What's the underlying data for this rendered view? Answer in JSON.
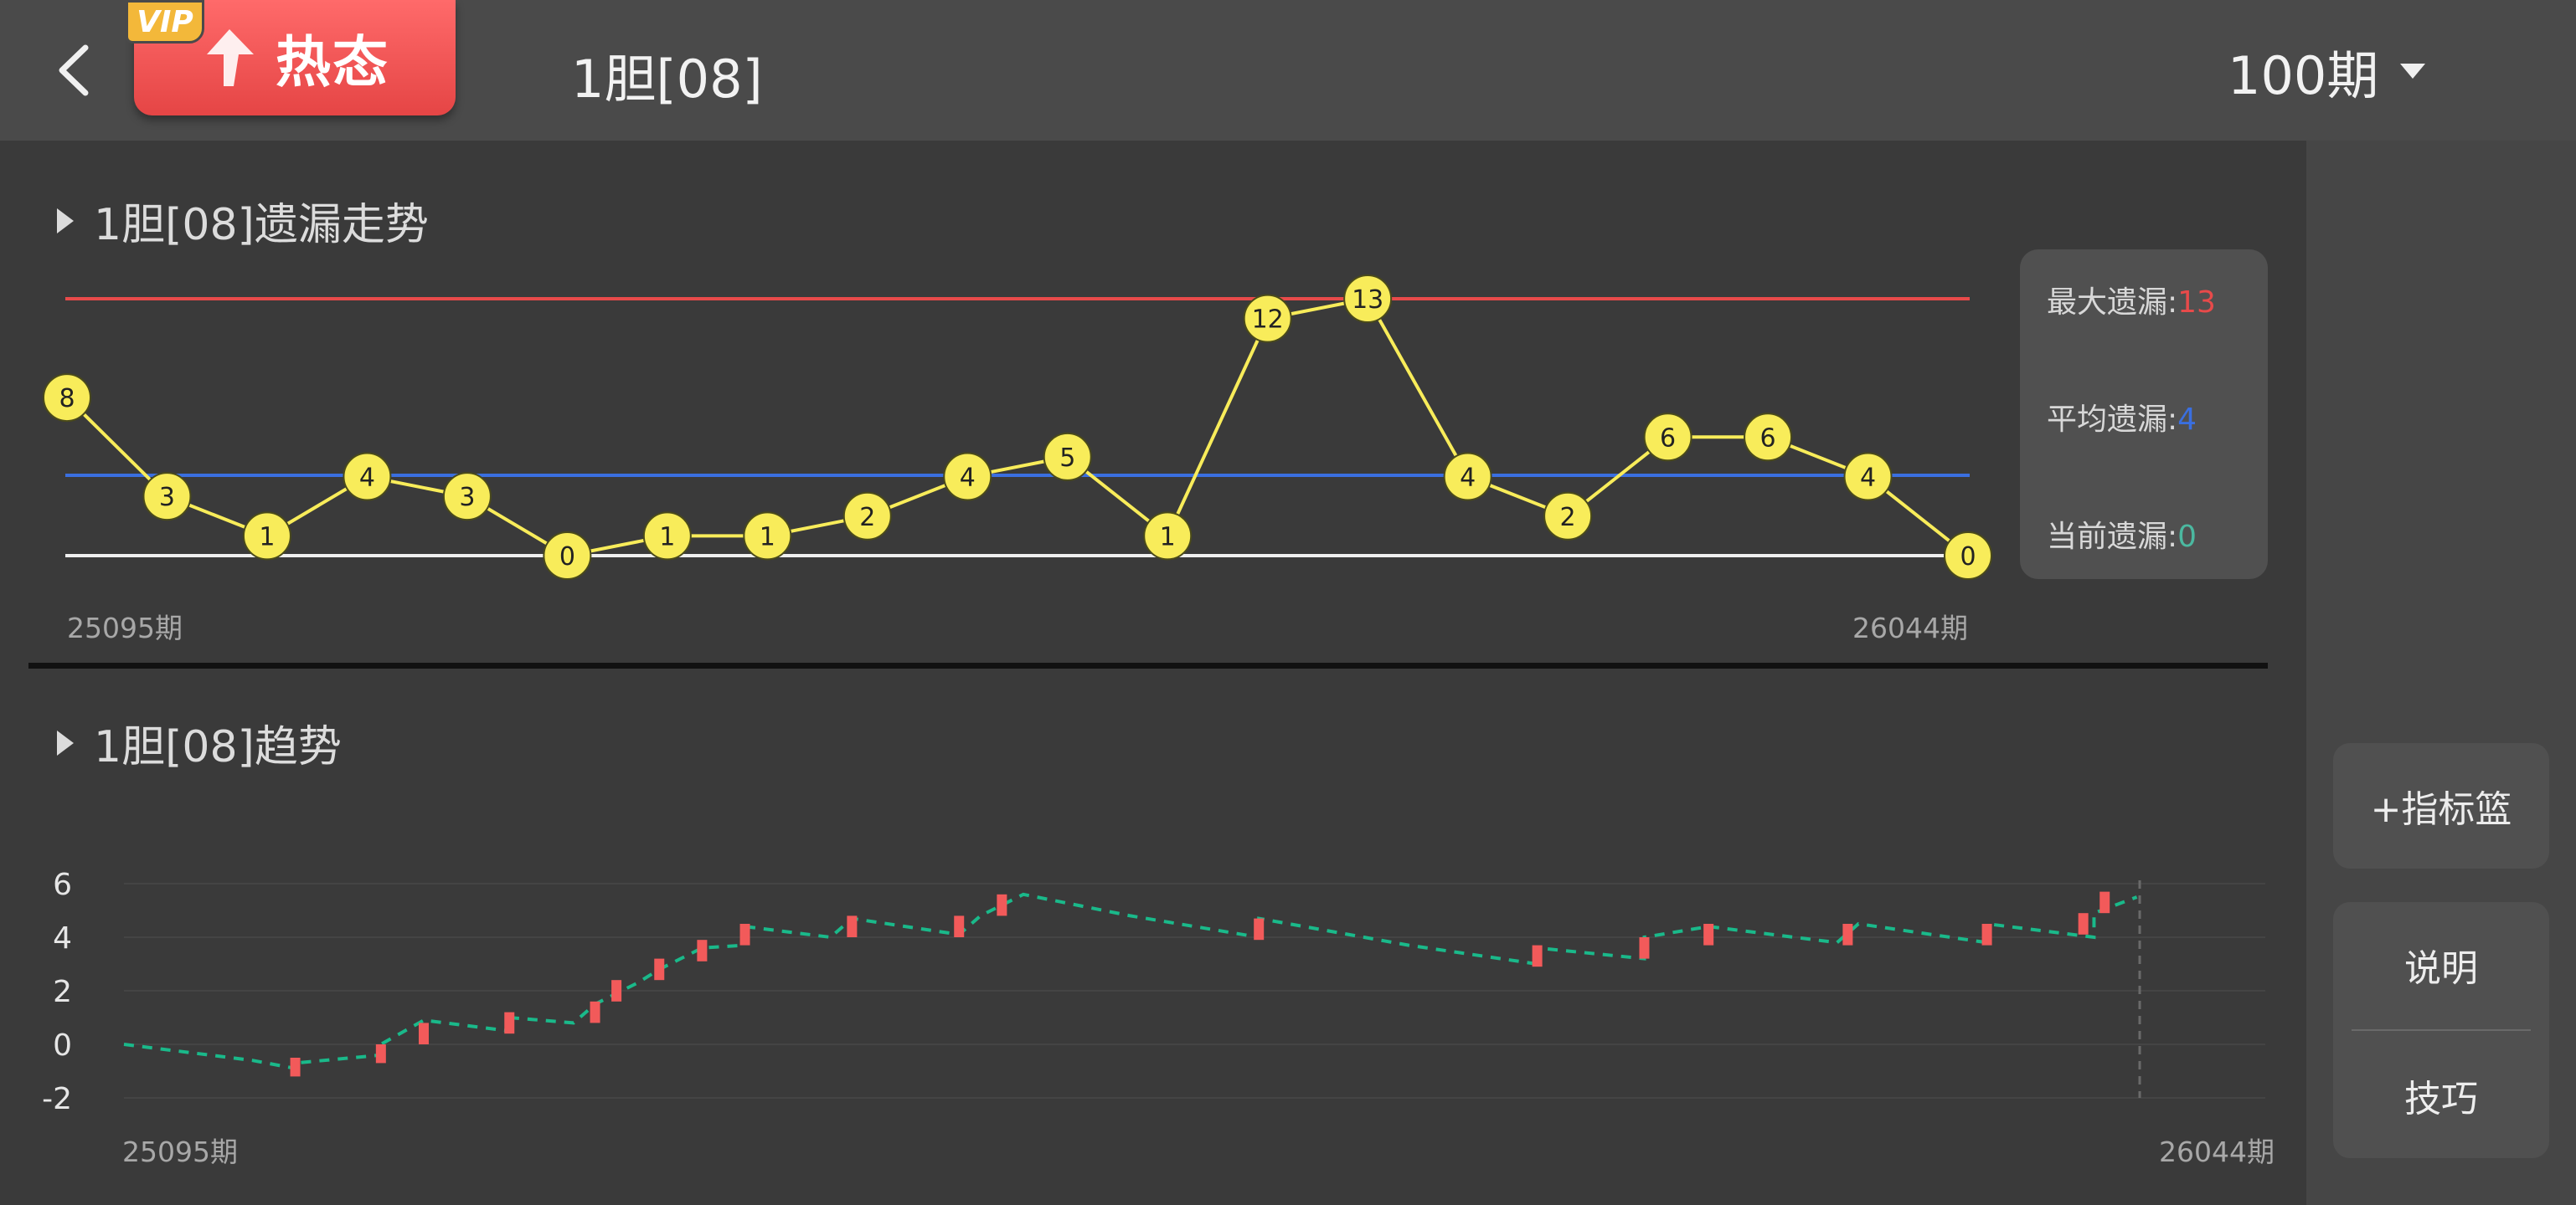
{
  "header": {
    "back_icon": "chevron-left-icon",
    "vip_badge": "VIP",
    "hot_tag_label": "热态",
    "hot_tag_icon": "arrow-up-icon",
    "title": "1胆[08]",
    "period_selected": "100期",
    "period_caret_icon": "caret-down-icon"
  },
  "colors": {
    "accent_red": "#e84a4a",
    "accent_blue": "#3a6fe0",
    "accent_teal": "#4bb8a0",
    "node_yellow": "#f8ec5a",
    "trend_green": "#1ab98a",
    "candle_red": "#f25a5a"
  },
  "missing_section": {
    "title": "1胆[08]遗漏走势",
    "start_label": "25095期",
    "end_label": "26044期",
    "stats": {
      "max_label": "最大遗漏:",
      "max_value": "13",
      "avg_label": "平均遗漏:",
      "avg_value": "4",
      "current_label": "当前遗漏:",
      "current_value": "0"
    },
    "chart_data": {
      "type": "line",
      "values": [
        8,
        3,
        1,
        4,
        3,
        0,
        1,
        1,
        2,
        4,
        5,
        1,
        12,
        13,
        4,
        2,
        6,
        6,
        4,
        0
      ],
      "reference_lines": {
        "max": 13,
        "average": 4,
        "zero": 0
      },
      "ylim": [
        0,
        13
      ]
    }
  },
  "trend_section": {
    "title": "1胆[08]趋势",
    "start_label": "25095期",
    "end_label": "26044期",
    "chart_data": {
      "type": "line",
      "y_ticks": [
        "6",
        "4",
        "2",
        "0",
        "-2"
      ],
      "ylim": [
        -2,
        6
      ],
      "x_range": [
        0,
        100
      ],
      "trend": [
        [
          0,
          0.0
        ],
        [
          3,
          -0.3
        ],
        [
          6,
          -0.6
        ],
        [
          8,
          -0.9
        ],
        [
          8,
          -0.7
        ],
        [
          12,
          -0.4
        ],
        [
          12,
          0
        ],
        [
          14,
          0.9
        ],
        [
          18,
          0.5
        ],
        [
          18,
          1.0
        ],
        [
          21,
          0.8
        ],
        [
          22,
          1.5
        ],
        [
          24,
          2.3
        ],
        [
          25,
          2.8
        ],
        [
          27,
          3.6
        ],
        [
          29,
          3.7
        ],
        [
          29,
          4.4
        ],
        [
          33,
          4.0
        ],
        [
          34,
          4.7
        ],
        [
          39,
          4.1
        ],
        [
          40,
          4.8
        ],
        [
          42,
          5.6
        ],
        [
          47,
          4.8
        ],
        [
          53,
          4.0
        ],
        [
          53,
          4.7
        ],
        [
          60,
          3.7
        ],
        [
          66,
          3.0
        ],
        [
          66,
          3.6
        ],
        [
          71,
          3.2
        ],
        [
          71,
          4.0
        ],
        [
          74,
          4.4
        ],
        [
          80,
          3.8
        ],
        [
          81,
          4.5
        ],
        [
          87,
          3.8
        ],
        [
          87,
          4.5
        ],
        [
          92,
          4.0
        ],
        [
          92,
          4.9
        ],
        [
          94,
          5.5
        ]
      ],
      "up_candles": [
        {
          "x": 8,
          "low": -1.2,
          "high": -0.5
        },
        {
          "x": 12,
          "low": -0.7,
          "high": 0.0
        },
        {
          "x": 14,
          "low": 0.0,
          "high": 0.8
        },
        {
          "x": 18,
          "low": 0.4,
          "high": 1.2
        },
        {
          "x": 22,
          "low": 0.8,
          "high": 1.6
        },
        {
          "x": 23,
          "low": 1.6,
          "high": 2.4
        },
        {
          "x": 25,
          "low": 2.4,
          "high": 3.2
        },
        {
          "x": 27,
          "low": 3.1,
          "high": 3.9
        },
        {
          "x": 29,
          "low": 3.7,
          "high": 4.5
        },
        {
          "x": 34,
          "low": 4.0,
          "high": 4.8
        },
        {
          "x": 39,
          "low": 4.0,
          "high": 4.8
        },
        {
          "x": 41,
          "low": 4.8,
          "high": 5.6
        },
        {
          "x": 53,
          "low": 3.9,
          "high": 4.7
        },
        {
          "x": 66,
          "low": 2.9,
          "high": 3.7
        },
        {
          "x": 71,
          "low": 3.2,
          "high": 4.0
        },
        {
          "x": 74,
          "low": 3.7,
          "high": 4.5
        },
        {
          "x": 80.5,
          "low": 3.7,
          "high": 4.5
        },
        {
          "x": 87,
          "low": 3.7,
          "high": 4.5
        },
        {
          "x": 91.5,
          "low": 4.1,
          "high": 4.9
        },
        {
          "x": 92.5,
          "low": 4.9,
          "high": 5.7
        }
      ]
    }
  },
  "side_buttons": {
    "indicator_basket": "+指标篮",
    "explain": "说明",
    "tips": "技巧"
  }
}
